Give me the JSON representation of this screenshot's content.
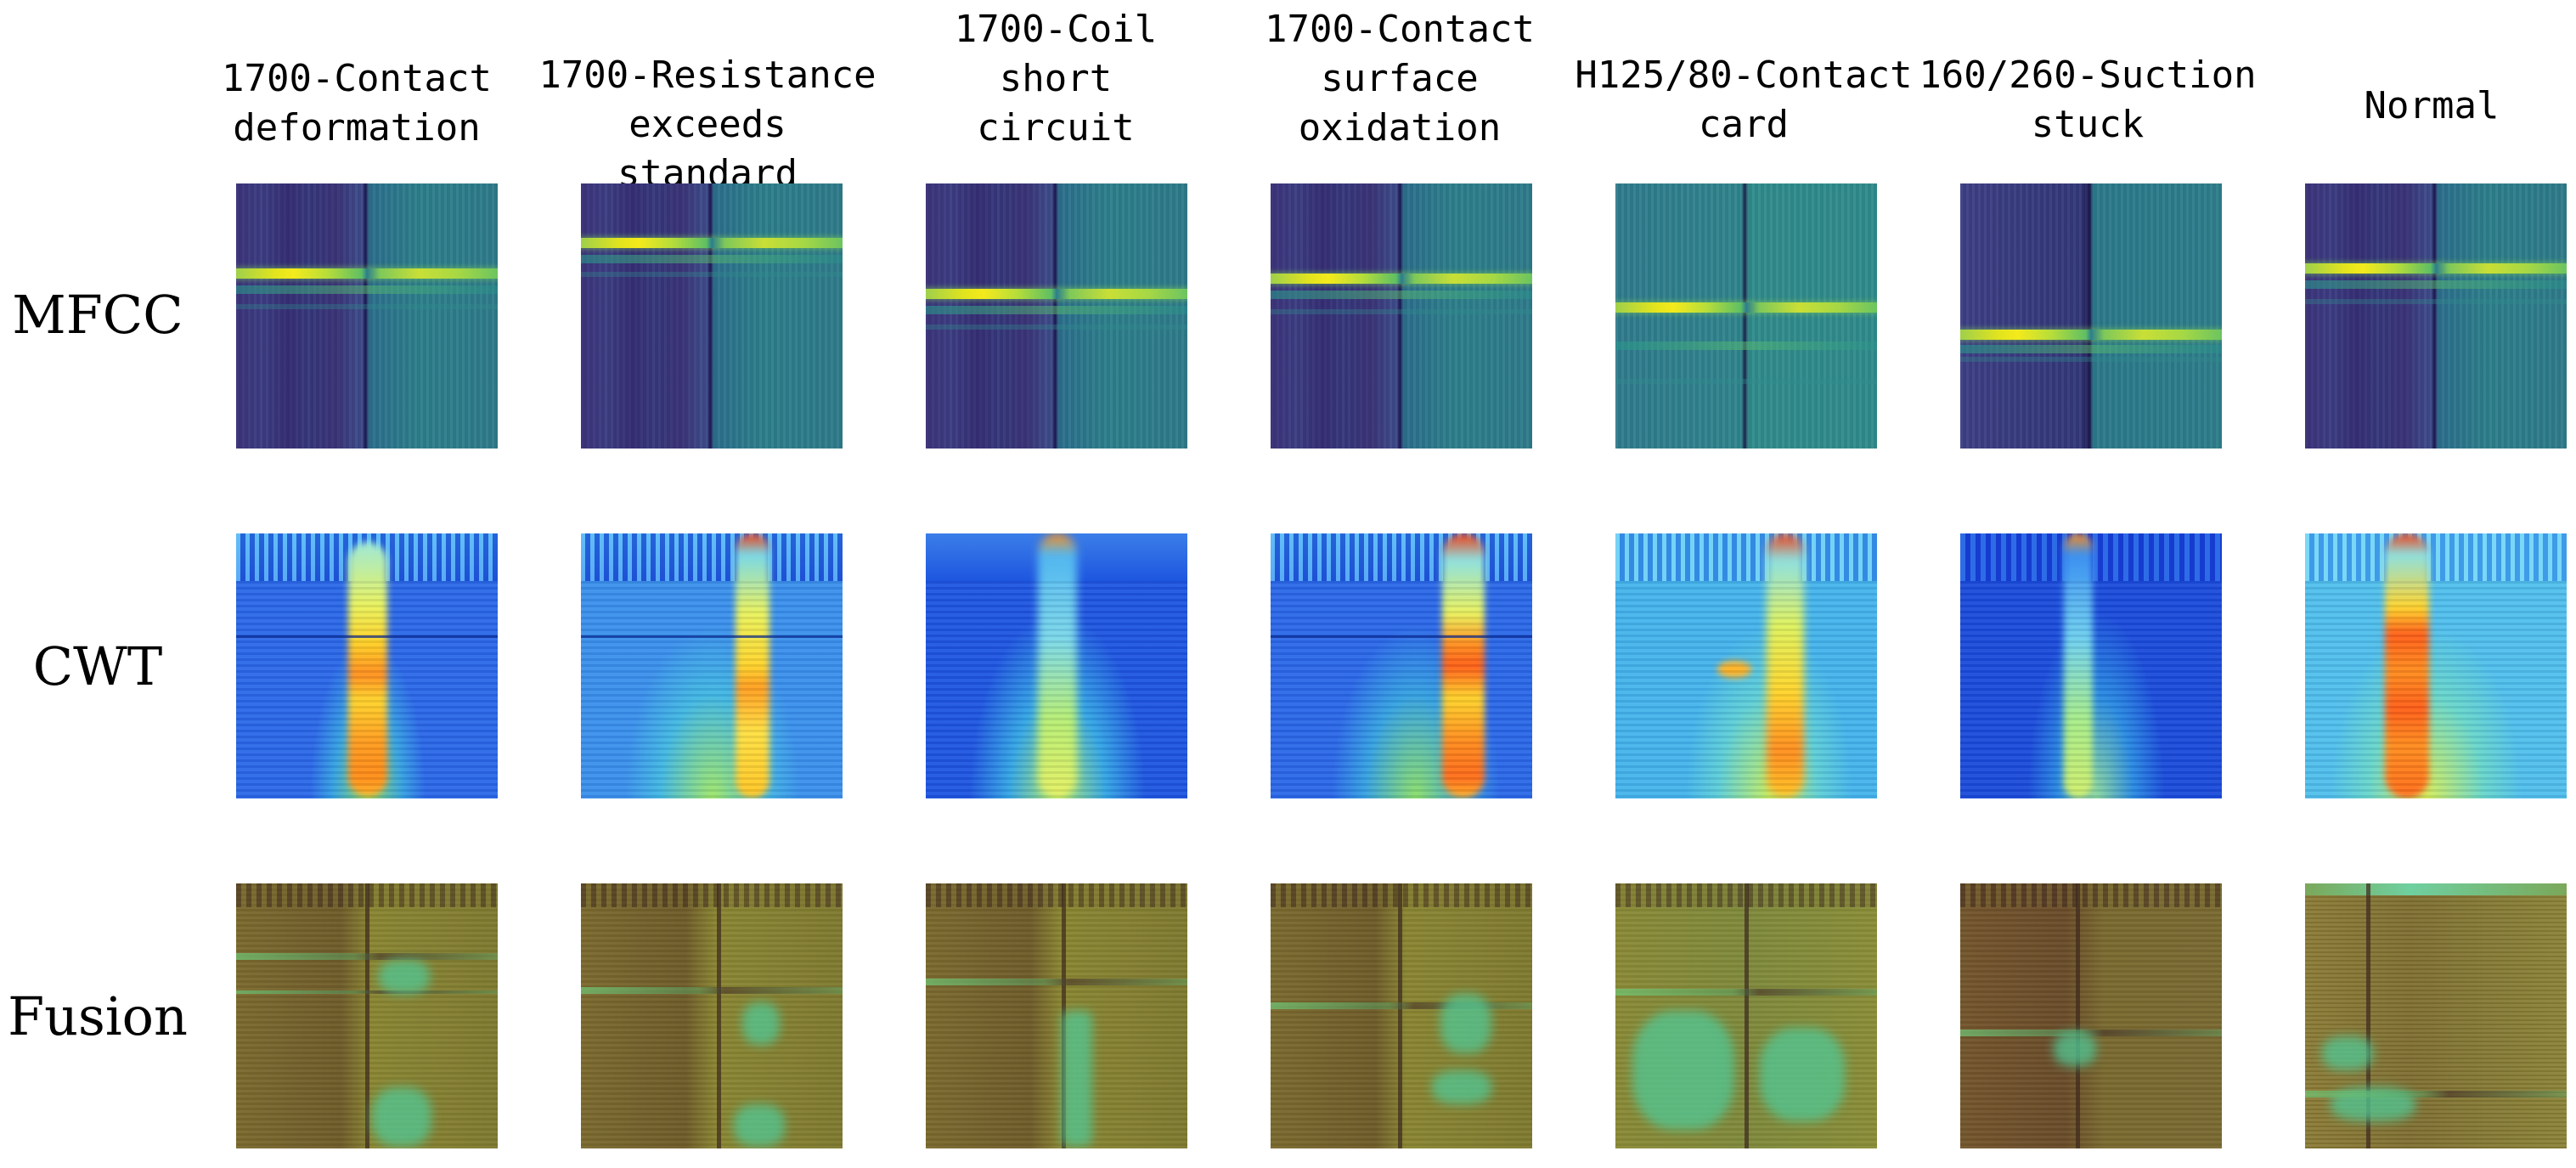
{
  "columns": [
    "1700-Contact\ndeformation",
    "1700-Resistance\nexceeds standard",
    "1700-Coil\nshort\ncircuit",
    "1700-Contact\nsurface\noxidation",
    "H125/80-Contact\ncard",
    "160/260-Suction\nstuck",
    "Normal"
  ],
  "rows": [
    "MFCC",
    "CWT",
    "Fusion"
  ],
  "colors": {
    "mfcc_dark": "#35387c",
    "mfcc_teal": "#2d7f8c",
    "mfcc_band": "#f4ea1c",
    "cwt_blue": "#2a68e8",
    "cwt_hot": "#f03c14",
    "fusion_base": "#7b6a2e",
    "fusion_green": "#50c896"
  }
}
